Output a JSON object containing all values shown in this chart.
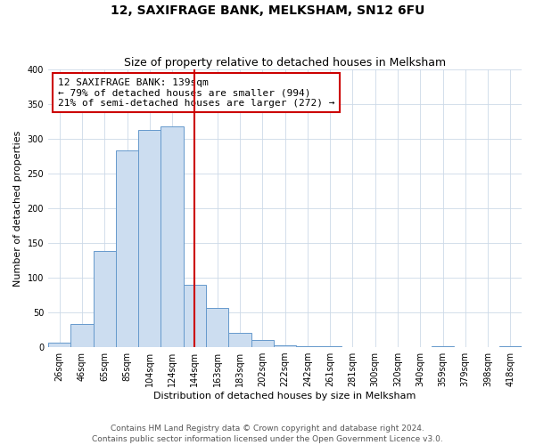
{
  "title": "12, SAXIFRAGE BANK, MELKSHAM, SN12 6FU",
  "subtitle": "Size of property relative to detached houses in Melksham",
  "xlabel": "Distribution of detached houses by size in Melksham",
  "ylabel": "Number of detached properties",
  "bin_labels": [
    "26sqm",
    "46sqm",
    "65sqm",
    "85sqm",
    "104sqm",
    "124sqm",
    "144sqm",
    "163sqm",
    "183sqm",
    "202sqm",
    "222sqm",
    "242sqm",
    "261sqm",
    "281sqm",
    "300sqm",
    "320sqm",
    "340sqm",
    "359sqm",
    "379sqm",
    "398sqm",
    "418sqm"
  ],
  "bar_heights": [
    7,
    33,
    138,
    283,
    313,
    318,
    90,
    57,
    20,
    10,
    3,
    1,
    1,
    0,
    0,
    0,
    0,
    1,
    0,
    0,
    2
  ],
  "bar_color": "#ccddf0",
  "bar_edge_color": "#6699cc",
  "vline_x": 6.0,
  "vline_color": "#cc0000",
  "annotation_text": "12 SAXIFRAGE BANK: 139sqm\n← 79% of detached houses are smaller (994)\n21% of semi-detached houses are larger (272) →",
  "annotation_box_color": "#ffffff",
  "annotation_box_edge": "#cc0000",
  "ylim": [
    0,
    400
  ],
  "yticks": [
    0,
    50,
    100,
    150,
    200,
    250,
    300,
    350,
    400
  ],
  "footer_text": "Contains HM Land Registry data © Crown copyright and database right 2024.\nContains public sector information licensed under the Open Government Licence v3.0.",
  "bg_color": "#ffffff",
  "grid_color": "#ccd9e8",
  "title_fontsize": 10,
  "subtitle_fontsize": 9,
  "label_fontsize": 8,
  "tick_fontsize": 7,
  "annotation_fontsize": 8,
  "footer_fontsize": 6.5
}
